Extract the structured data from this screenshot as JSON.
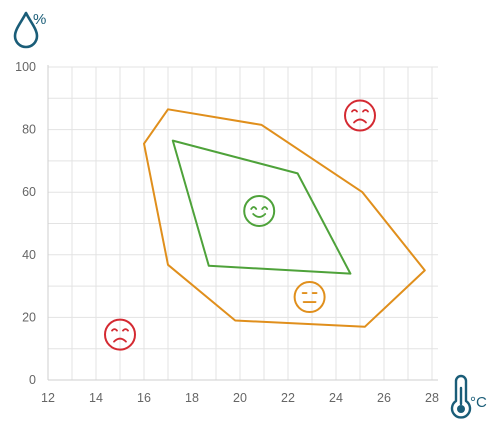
{
  "chart_data": {
    "type": "line",
    "x_unit_label": "°C",
    "y_unit_label": "%",
    "x_icon": "thermometer-icon",
    "y_icon": "water-drop-icon",
    "xlim": [
      12,
      28
    ],
    "ylim": [
      0,
      100
    ],
    "x_ticks": [
      "12",
      "14",
      "16",
      "18",
      "20",
      "22",
      "24",
      "26",
      "28"
    ],
    "y_ticks": [
      "0",
      "20",
      "40",
      "60",
      "80",
      "100"
    ],
    "grid": true,
    "colors": {
      "outer": "#e08f1c",
      "inner": "#4ea23a",
      "sad": "#d42a32",
      "neutral": "#e08f1c",
      "happy": "#4ea23a",
      "unit": "#1a5d78"
    },
    "series": [
      {
        "id": "outer-zone",
        "color": "#e08f1c",
        "closed": true,
        "points": [
          [
            17,
            86.5
          ],
          [
            20.9,
            81.5
          ],
          [
            25.1,
            60
          ],
          [
            27.7,
            35
          ],
          [
            25.2,
            17
          ],
          [
            19.8,
            19
          ],
          [
            17.0,
            36.8
          ],
          [
            16.0,
            75.5
          ]
        ]
      },
      {
        "id": "inner-zone",
        "color": "#4ea23a",
        "closed": true,
        "points": [
          [
            17.2,
            76.5
          ],
          [
            22.4,
            66
          ],
          [
            24.6,
            34
          ],
          [
            18.7,
            36.5
          ]
        ]
      }
    ],
    "markers": [
      {
        "id": "sad-top-right",
        "type": "sad",
        "x": 25.0,
        "y": 84.5,
        "color": "#d42a32"
      },
      {
        "id": "happy-center",
        "type": "happy",
        "x": 20.8,
        "y": 54,
        "color": "#4ea23a"
      },
      {
        "id": "neutral-lower",
        "type": "neutral",
        "x": 22.9,
        "y": 26.5,
        "color": "#e08f1c"
      },
      {
        "id": "sad-bottom-left",
        "type": "sad",
        "x": 15.0,
        "y": 14.5,
        "color": "#d42a32"
      }
    ]
  }
}
